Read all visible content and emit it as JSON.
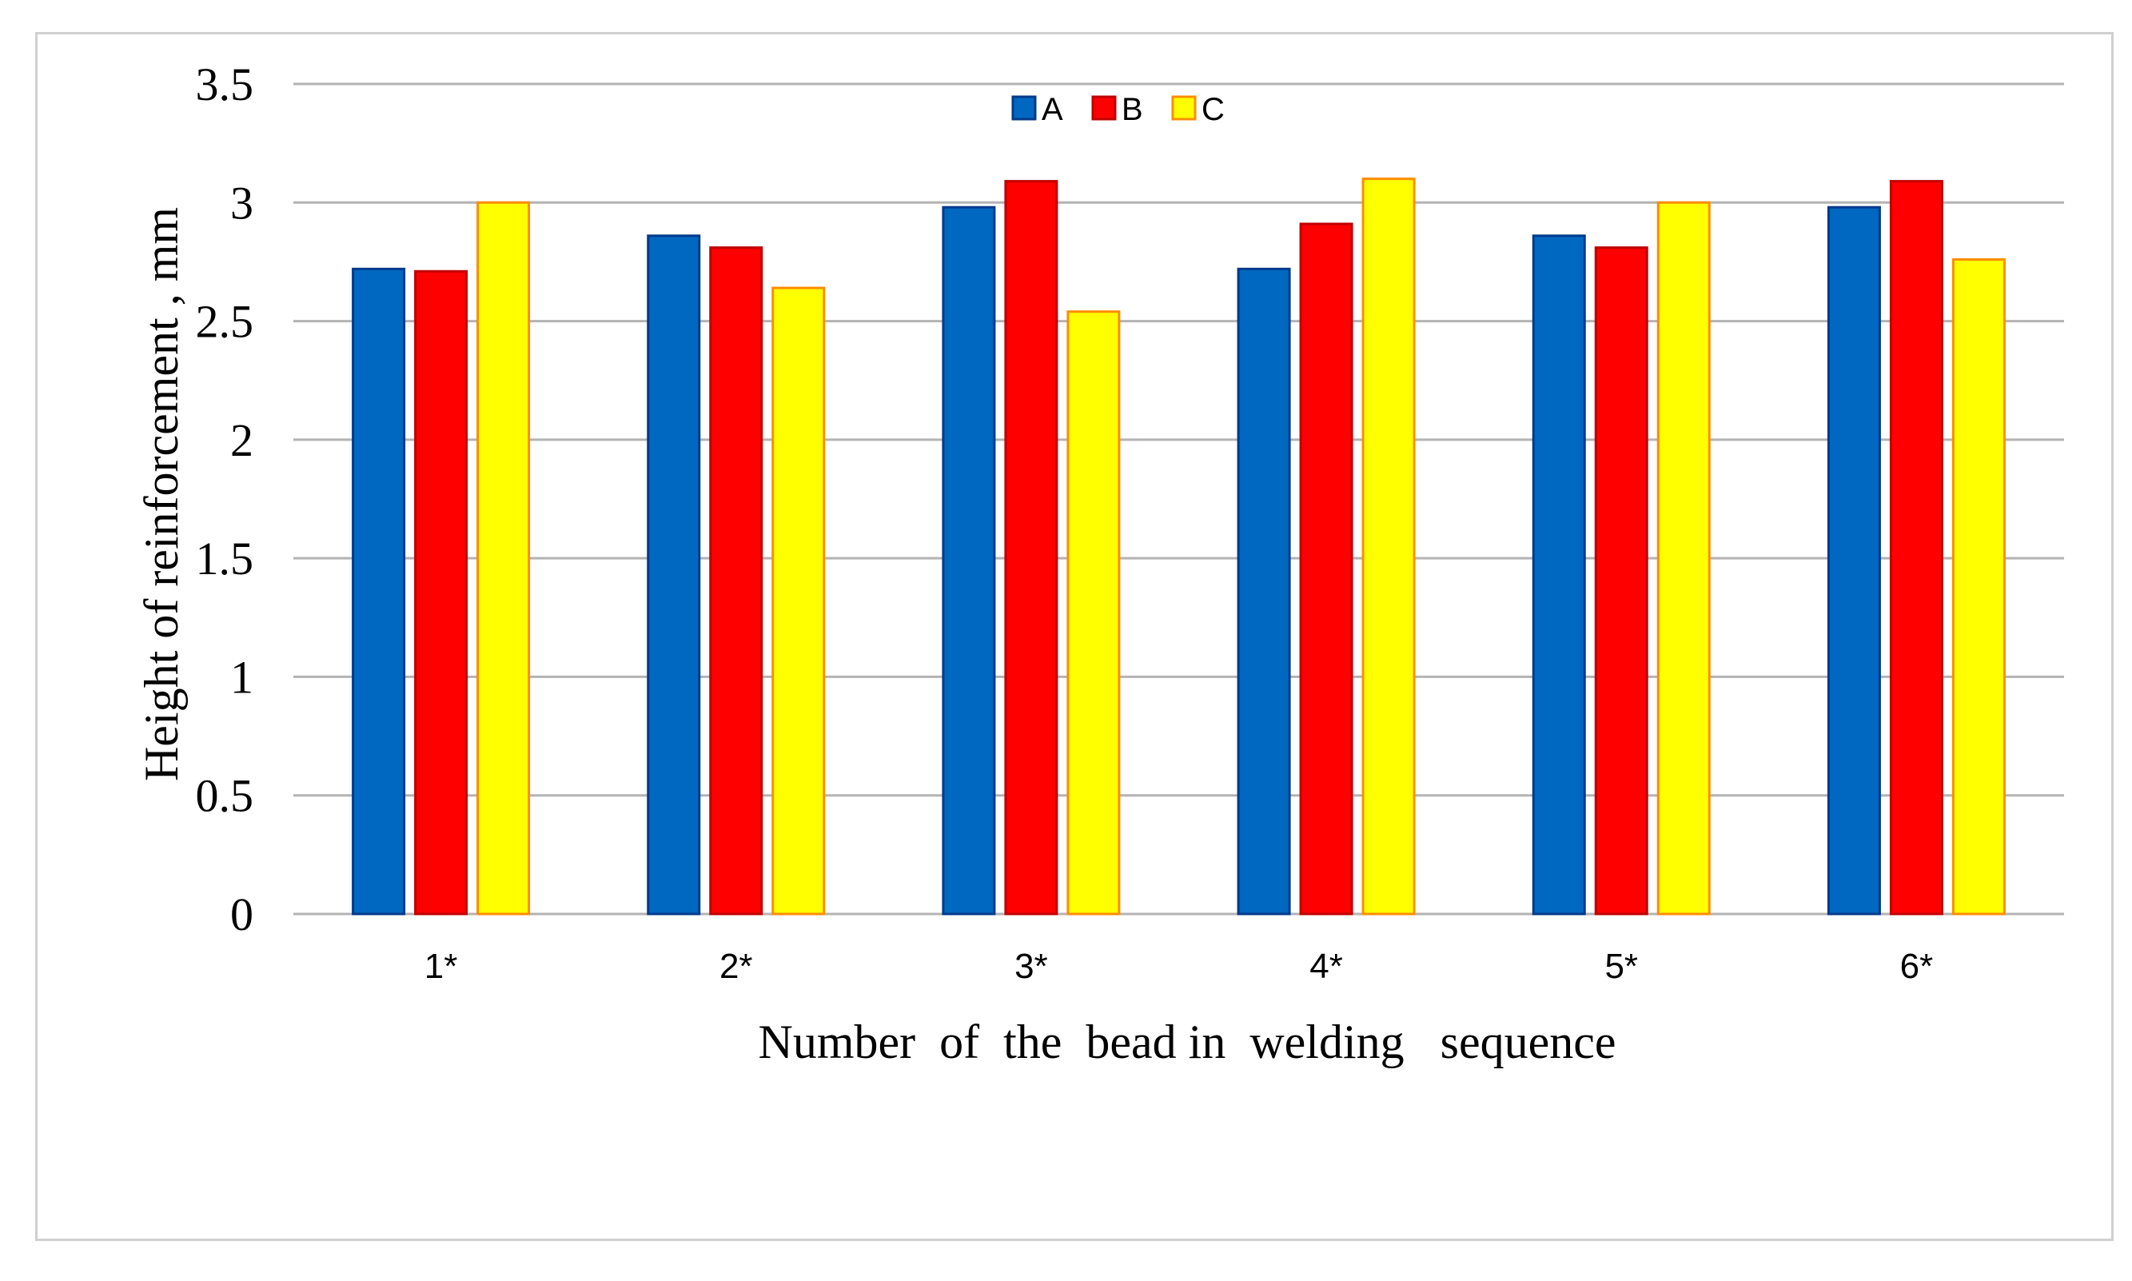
{
  "chart_data": {
    "type": "bar",
    "title": "",
    "xlabel": "Number  of  the  bead in  welding   sequence",
    "ylabel": "Height  of reinforcement  , mm",
    "categories": [
      "1*",
      "2*",
      "3*",
      "4*",
      "5*",
      "6*"
    ],
    "series": [
      {
        "name": "A",
        "color": "#0068c0",
        "values": [
          2.72,
          2.86,
          2.98,
          2.72,
          2.86,
          2.98
        ]
      },
      {
        "name": "B",
        "color": "#ff0000",
        "values": [
          2.71,
          2.81,
          3.09,
          2.91,
          2.81,
          3.09
        ]
      },
      {
        "name": "C",
        "color": "#ffff00",
        "values": [
          3.0,
          2.64,
          2.54,
          3.1,
          3.0,
          2.76
        ]
      }
    ],
    "ylim": [
      0,
      3.5
    ],
    "yticks": [
      "0",
      "0.5",
      "1",
      "1.5",
      "2",
      "2.5",
      "3",
      "3.5"
    ],
    "ytick_values": [
      0,
      0.5,
      1,
      1.5,
      2,
      2.5,
      3,
      3.5
    ],
    "grid": true,
    "legend": "top-center",
    "colors": {
      "gridline": "#b3b3b3",
      "bar_A_edge": "#003a8c",
      "bar_B_edge": "#c00000",
      "bar_C_edge": "#ff8c00"
    }
  }
}
